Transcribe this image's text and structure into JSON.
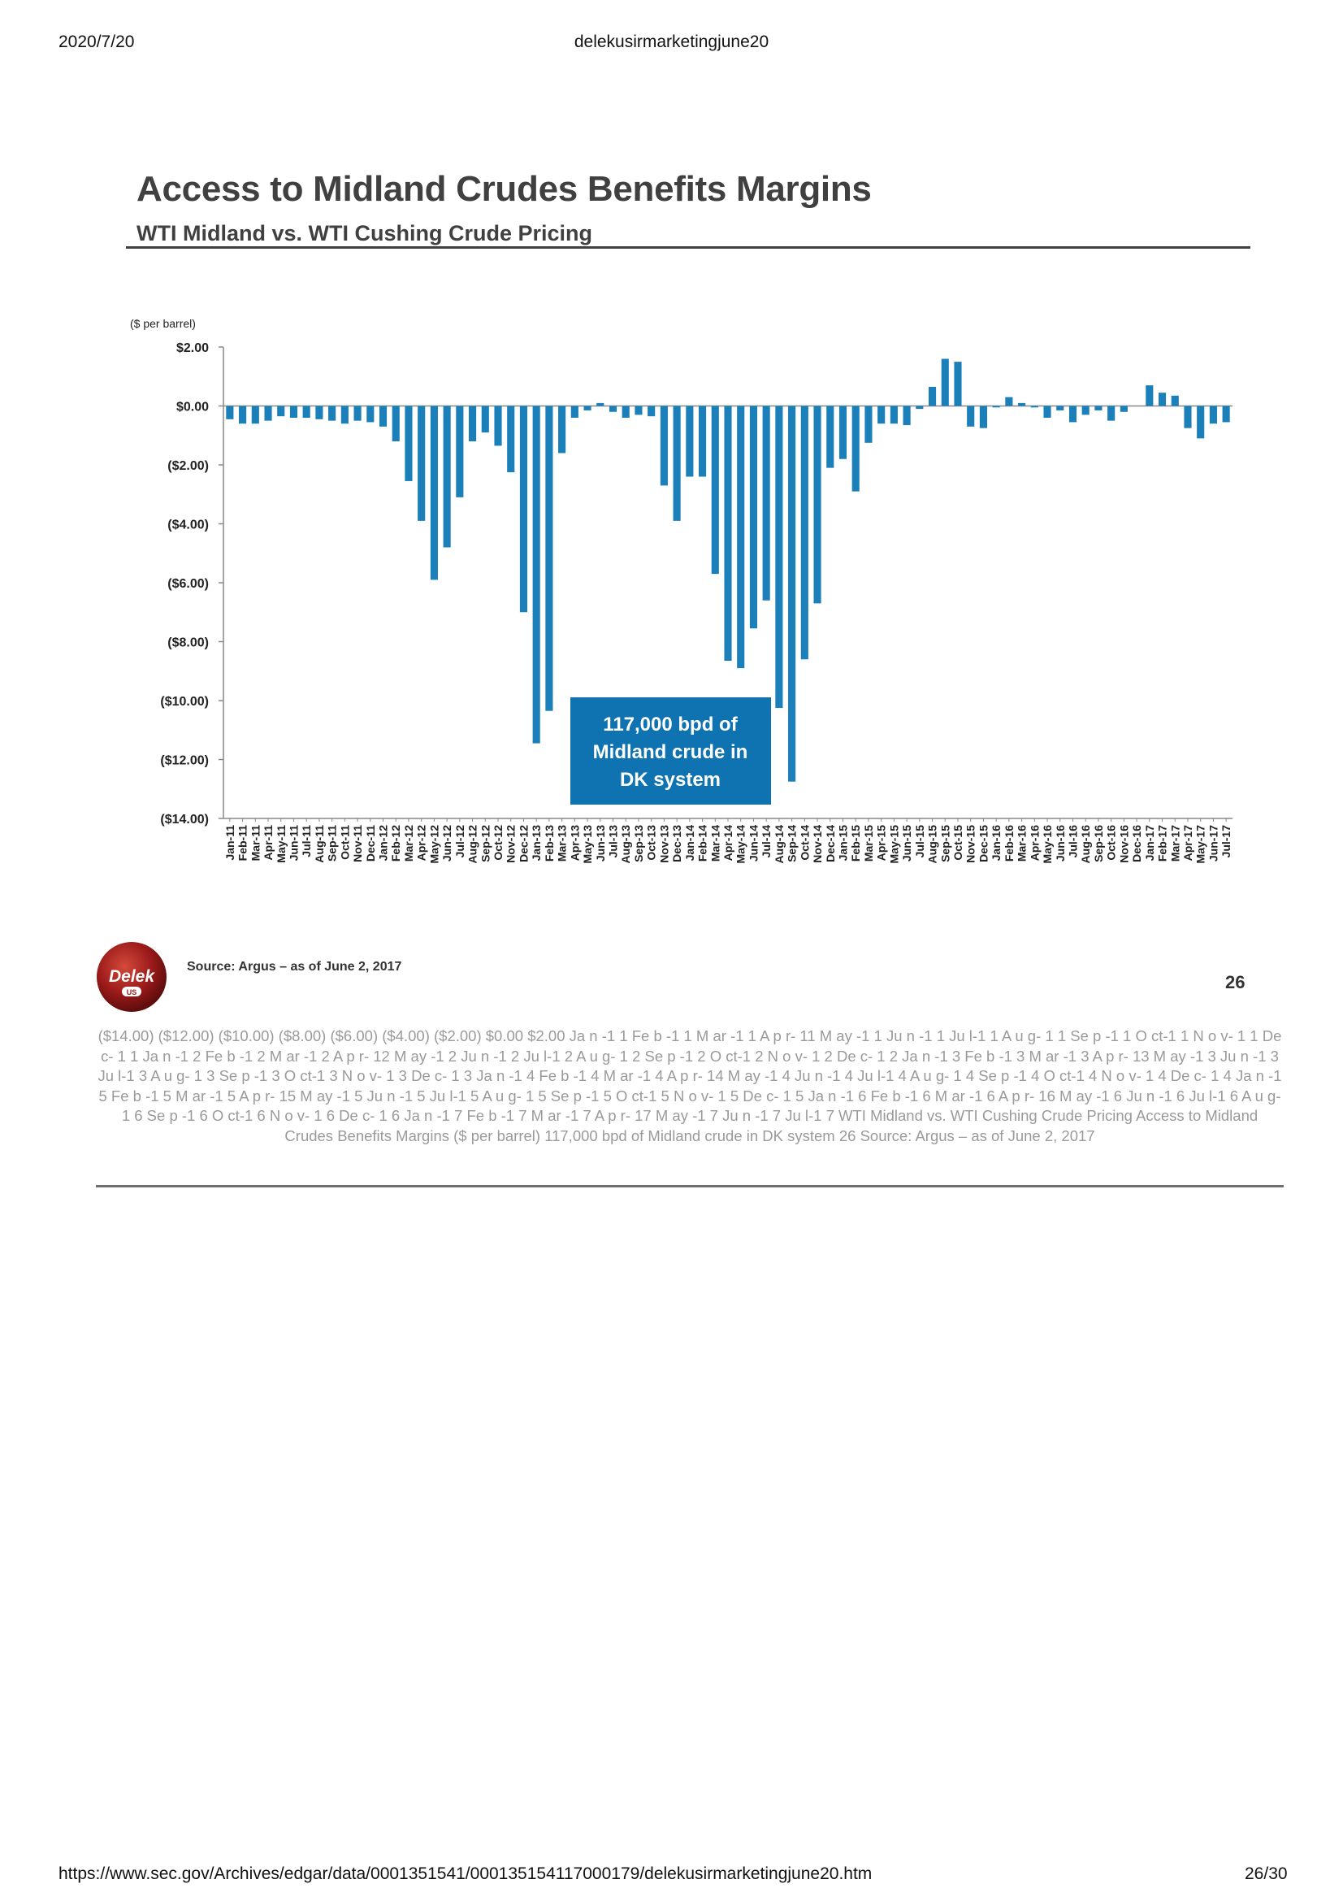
{
  "print_header": {
    "date": "2020/7/20",
    "title": "delekusirmarketingjune20"
  },
  "slide": {
    "title": "Access to Midland Crudes Benefits Margins",
    "subtitle": "WTI Midland vs. WTI Cushing Crude Pricing",
    "callout_lines": [
      "117,000 bpd of",
      "Midland crude in",
      "DK system"
    ],
    "logo_text": "Delek",
    "logo_subtext": "US",
    "source": "Source:  Argus – as of June 2, 2017",
    "page_number": "26"
  },
  "ocr_text": "($14.00) ($12.00) ($10.00) ($8.00) ($6.00) ($4.00) ($2.00) $0.00 $2.00 Ja n -1 1 Fe b -1 1 M ar -1 1 A p r- 11 M ay -1 1 Ju n -1 1 Ju l-1 1 A u g- 1 1 Se p -1 1 O ct-1 1 N o v- 1 1 De c- 1 1 Ja n -1 2 Fe b -1 2 M ar -1 2 A p r- 12 M ay -1 2 Ju n -1 2 Ju l-1 2 A u g- 1 2 Se p -1 2 O ct-1 2 N o v- 1 2 De c- 1 2 Ja n -1 3 Fe b -1 3 M ar -1 3 A p r- 13 M ay -1 3 Ju n -1 3 Ju l-1 3 A u g- 1 3 Se p -1 3 O ct-1 3 N o v- 1 3 De c- 1 3 Ja n -1 4 Fe b -1 4 M ar -1 4 A p r- 14 M ay -1 4 Ju n -1 4 Ju l-1 4 A u g- 1 4 Se p -1 4 O ct-1 4 N o v- 1 4 De c- 1 4 Ja n -1 5 Fe b -1 5 M ar -1 5 A p r- 15 M ay -1 5 Ju n -1 5 Ju l-1 5 A u g- 1 5 Se p -1 5 O ct-1 5 N o v- 1 5 De c- 1 5 Ja n -1 6 Fe b -1 6 M ar -1 6 A p r- 16 M ay -1 6 Ju n -1 6 Ju l-1 6 A u g- 1 6 Se p -1 6 O ct-1 6 N o v- 1 6 De c- 1 6 Ja n -1 7 Fe b -1 7 M ar -1 7 A p r- 17 M ay -1 7 Ju n -1 7 Ju l-1 7 WTI Midland vs. WTI Cushing Crude Pricing Access to Midland Crudes Benefits Margins ($ per barrel) 117,000 bpd of  Midland crude in  DK system 26 Source: Argus – as of June 2, 2017",
  "footer": {
    "url": "https://www.sec.gov/Archives/edgar/data/0001351541/000135154117000179/delekusirmarketingjune20.htm",
    "page": "26/30"
  },
  "colors": {
    "bar": "#1b7fba",
    "callout_bg": "#0f73b2",
    "axis": "#888888",
    "logo": "#9b1a1a"
  },
  "chart_data": {
    "type": "bar",
    "unit_label": "($ per barrel)",
    "ylim": [
      -14,
      2
    ],
    "y_ticks": [
      2,
      0,
      -2,
      -4,
      -6,
      -8,
      -10,
      -12,
      -14
    ],
    "y_tick_labels": [
      "$2.00",
      "$0.00",
      "($2.00)",
      "($4.00)",
      "($6.00)",
      "($8.00)",
      "($10.00)",
      "($12.00)",
      "($14.00)"
    ],
    "grid": false,
    "legend": "none",
    "categories": [
      "Jan-11",
      "Feb-11",
      "Mar-11",
      "Apr-11",
      "May-11",
      "Jun-11",
      "Jul-11",
      "Aug-11",
      "Sep-11",
      "Oct-11",
      "Nov-11",
      "Dec-11",
      "Jan-12",
      "Feb-12",
      "Mar-12",
      "Apr-12",
      "May-12",
      "Jun-12",
      "Jul-12",
      "Aug-12",
      "Sep-12",
      "Oct-12",
      "Nov-12",
      "Dec-12",
      "Jan-13",
      "Feb-13",
      "Mar-13",
      "Apr-13",
      "May-13",
      "Jun-13",
      "Jul-13",
      "Aug-13",
      "Sep-13",
      "Oct-13",
      "Nov-13",
      "Dec-13",
      "Jan-14",
      "Feb-14",
      "Mar-14",
      "Apr-14",
      "May-14",
      "Jun-14",
      "Jul-14",
      "Aug-14",
      "Sep-14",
      "Oct-14",
      "Nov-14",
      "Dec-14",
      "Jan-15",
      "Feb-15",
      "Mar-15",
      "Apr-15",
      "May-15",
      "Jun-15",
      "Jul-15",
      "Aug-15",
      "Sep-15",
      "Oct-15",
      "Nov-15",
      "Dec-15",
      "Jan-16",
      "Feb-16",
      "Mar-16",
      "Apr-16",
      "May-16",
      "Jun-16",
      "Jul-16",
      "Aug-16",
      "Sep-16",
      "Oct-16",
      "Nov-16",
      "Dec-16",
      "Jan-17",
      "Feb-17",
      "Mar-17",
      "Apr-17",
      "May-17",
      "Jun-17",
      "Jul-17"
    ],
    "values": [
      -0.45,
      -0.6,
      -0.6,
      -0.5,
      -0.35,
      -0.4,
      -0.4,
      -0.45,
      -0.5,
      -0.6,
      -0.5,
      -0.55,
      -0.7,
      -1.2,
      -2.55,
      -3.9,
      -5.9,
      -4.8,
      -3.1,
      -1.2,
      -0.9,
      -1.35,
      -2.25,
      -7.0,
      -11.45,
      -10.35,
      -1.6,
      -0.4,
      -0.15,
      0.1,
      -0.2,
      -0.4,
      -0.3,
      -0.35,
      -2.7,
      -3.9,
      -2.4,
      -2.4,
      -5.7,
      -8.65,
      -8.9,
      -7.55,
      -6.6,
      -10.25,
      -12.75,
      -8.6,
      -6.7,
      -2.1,
      -1.8,
      -2.9,
      -1.25,
      -0.6,
      -0.6,
      -0.65,
      -0.1,
      0.65,
      1.6,
      1.5,
      -0.7,
      -0.75,
      -0.05,
      0.3,
      0.1,
      -0.05,
      -0.4,
      -0.15,
      -0.55,
      -0.3,
      -0.15,
      -0.5,
      -0.2,
      0.0,
      0.7,
      0.45,
      0.35,
      -0.75,
      -1.1,
      -0.6,
      -0.55
    ]
  }
}
